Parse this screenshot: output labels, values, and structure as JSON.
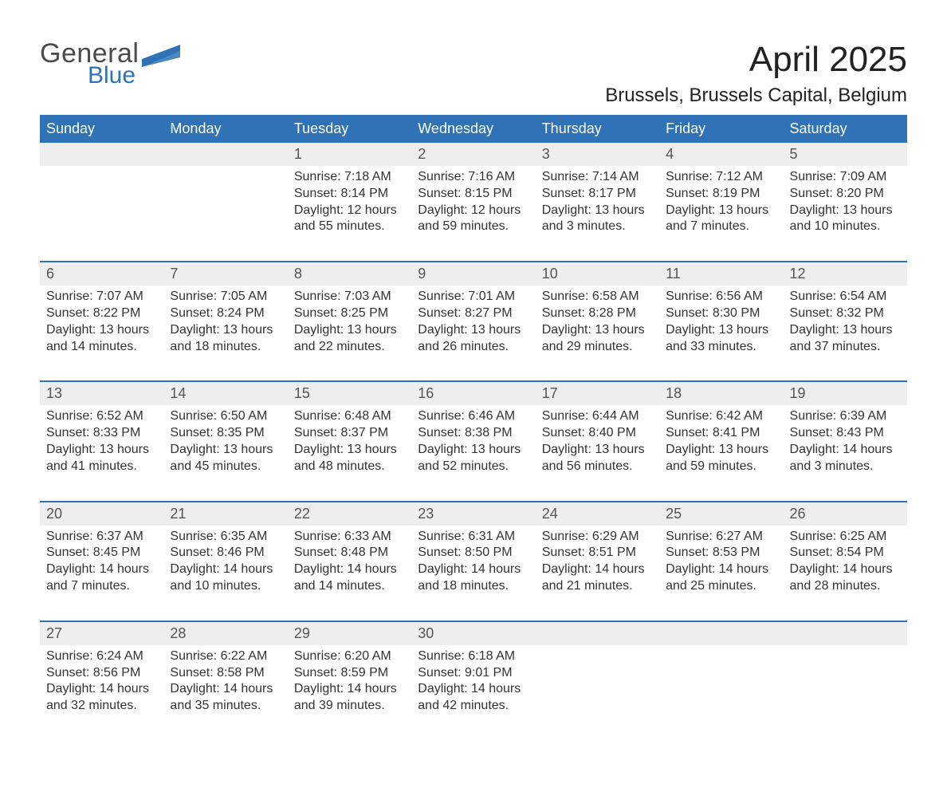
{
  "logo": {
    "word1": "General",
    "word2": "Blue"
  },
  "title": "April 2025",
  "location": "Brussels, Brussels Capital, Belgium",
  "colors": {
    "header_bg": "#2f73b6",
    "header_text": "#ffffff",
    "daynum_bg": "#eeeeee",
    "daynum_text": "#555555",
    "week_border": "#2f73b6",
    "body_text": "#333333",
    "page_bg": "#ffffff",
    "logo_gray": "#4a4a4a",
    "logo_blue": "#2f73b6"
  },
  "typography": {
    "title_fontsize": 44,
    "location_fontsize": 24,
    "header_fontsize": 18,
    "daynum_fontsize": 18,
    "cell_fontsize": 16
  },
  "calendar": {
    "type": "table",
    "columns": [
      "Sunday",
      "Monday",
      "Tuesday",
      "Wednesday",
      "Thursday",
      "Friday",
      "Saturday"
    ],
    "weeks": [
      [
        null,
        null,
        {
          "day": "1",
          "sunrise": "Sunrise: 7:18 AM",
          "sunset": "Sunset: 8:14 PM",
          "dl1": "Daylight: 12 hours",
          "dl2": "and 55 minutes."
        },
        {
          "day": "2",
          "sunrise": "Sunrise: 7:16 AM",
          "sunset": "Sunset: 8:15 PM",
          "dl1": "Daylight: 12 hours",
          "dl2": "and 59 minutes."
        },
        {
          "day": "3",
          "sunrise": "Sunrise: 7:14 AM",
          "sunset": "Sunset: 8:17 PM",
          "dl1": "Daylight: 13 hours",
          "dl2": "and 3 minutes."
        },
        {
          "day": "4",
          "sunrise": "Sunrise: 7:12 AM",
          "sunset": "Sunset: 8:19 PM",
          "dl1": "Daylight: 13 hours",
          "dl2": "and 7 minutes."
        },
        {
          "day": "5",
          "sunrise": "Sunrise: 7:09 AM",
          "sunset": "Sunset: 8:20 PM",
          "dl1": "Daylight: 13 hours",
          "dl2": "and 10 minutes."
        }
      ],
      [
        {
          "day": "6",
          "sunrise": "Sunrise: 7:07 AM",
          "sunset": "Sunset: 8:22 PM",
          "dl1": "Daylight: 13 hours",
          "dl2": "and 14 minutes."
        },
        {
          "day": "7",
          "sunrise": "Sunrise: 7:05 AM",
          "sunset": "Sunset: 8:24 PM",
          "dl1": "Daylight: 13 hours",
          "dl2": "and 18 minutes."
        },
        {
          "day": "8",
          "sunrise": "Sunrise: 7:03 AM",
          "sunset": "Sunset: 8:25 PM",
          "dl1": "Daylight: 13 hours",
          "dl2": "and 22 minutes."
        },
        {
          "day": "9",
          "sunrise": "Sunrise: 7:01 AM",
          "sunset": "Sunset: 8:27 PM",
          "dl1": "Daylight: 13 hours",
          "dl2": "and 26 minutes."
        },
        {
          "day": "10",
          "sunrise": "Sunrise: 6:58 AM",
          "sunset": "Sunset: 8:28 PM",
          "dl1": "Daylight: 13 hours",
          "dl2": "and 29 minutes."
        },
        {
          "day": "11",
          "sunrise": "Sunrise: 6:56 AM",
          "sunset": "Sunset: 8:30 PM",
          "dl1": "Daylight: 13 hours",
          "dl2": "and 33 minutes."
        },
        {
          "day": "12",
          "sunrise": "Sunrise: 6:54 AM",
          "sunset": "Sunset: 8:32 PM",
          "dl1": "Daylight: 13 hours",
          "dl2": "and 37 minutes."
        }
      ],
      [
        {
          "day": "13",
          "sunrise": "Sunrise: 6:52 AM",
          "sunset": "Sunset: 8:33 PM",
          "dl1": "Daylight: 13 hours",
          "dl2": "and 41 minutes."
        },
        {
          "day": "14",
          "sunrise": "Sunrise: 6:50 AM",
          "sunset": "Sunset: 8:35 PM",
          "dl1": "Daylight: 13 hours",
          "dl2": "and 45 minutes."
        },
        {
          "day": "15",
          "sunrise": "Sunrise: 6:48 AM",
          "sunset": "Sunset: 8:37 PM",
          "dl1": "Daylight: 13 hours",
          "dl2": "and 48 minutes."
        },
        {
          "day": "16",
          "sunrise": "Sunrise: 6:46 AM",
          "sunset": "Sunset: 8:38 PM",
          "dl1": "Daylight: 13 hours",
          "dl2": "and 52 minutes."
        },
        {
          "day": "17",
          "sunrise": "Sunrise: 6:44 AM",
          "sunset": "Sunset: 8:40 PM",
          "dl1": "Daylight: 13 hours",
          "dl2": "and 56 minutes."
        },
        {
          "day": "18",
          "sunrise": "Sunrise: 6:42 AM",
          "sunset": "Sunset: 8:41 PM",
          "dl1": "Daylight: 13 hours",
          "dl2": "and 59 minutes."
        },
        {
          "day": "19",
          "sunrise": "Sunrise: 6:39 AM",
          "sunset": "Sunset: 8:43 PM",
          "dl1": "Daylight: 14 hours",
          "dl2": "and 3 minutes."
        }
      ],
      [
        {
          "day": "20",
          "sunrise": "Sunrise: 6:37 AM",
          "sunset": "Sunset: 8:45 PM",
          "dl1": "Daylight: 14 hours",
          "dl2": "and 7 minutes."
        },
        {
          "day": "21",
          "sunrise": "Sunrise: 6:35 AM",
          "sunset": "Sunset: 8:46 PM",
          "dl1": "Daylight: 14 hours",
          "dl2": "and 10 minutes."
        },
        {
          "day": "22",
          "sunrise": "Sunrise: 6:33 AM",
          "sunset": "Sunset: 8:48 PM",
          "dl1": "Daylight: 14 hours",
          "dl2": "and 14 minutes."
        },
        {
          "day": "23",
          "sunrise": "Sunrise: 6:31 AM",
          "sunset": "Sunset: 8:50 PM",
          "dl1": "Daylight: 14 hours",
          "dl2": "and 18 minutes."
        },
        {
          "day": "24",
          "sunrise": "Sunrise: 6:29 AM",
          "sunset": "Sunset: 8:51 PM",
          "dl1": "Daylight: 14 hours",
          "dl2": "and 21 minutes."
        },
        {
          "day": "25",
          "sunrise": "Sunrise: 6:27 AM",
          "sunset": "Sunset: 8:53 PM",
          "dl1": "Daylight: 14 hours",
          "dl2": "and 25 minutes."
        },
        {
          "day": "26",
          "sunrise": "Sunrise: 6:25 AM",
          "sunset": "Sunset: 8:54 PM",
          "dl1": "Daylight: 14 hours",
          "dl2": "and 28 minutes."
        }
      ],
      [
        {
          "day": "27",
          "sunrise": "Sunrise: 6:24 AM",
          "sunset": "Sunset: 8:56 PM",
          "dl1": "Daylight: 14 hours",
          "dl2": "and 32 minutes."
        },
        {
          "day": "28",
          "sunrise": "Sunrise: 6:22 AM",
          "sunset": "Sunset: 8:58 PM",
          "dl1": "Daylight: 14 hours",
          "dl2": "and 35 minutes."
        },
        {
          "day": "29",
          "sunrise": "Sunrise: 6:20 AM",
          "sunset": "Sunset: 8:59 PM",
          "dl1": "Daylight: 14 hours",
          "dl2": "and 39 minutes."
        },
        {
          "day": "30",
          "sunrise": "Sunrise: 6:18 AM",
          "sunset": "Sunset: 9:01 PM",
          "dl1": "Daylight: 14 hours",
          "dl2": "and 42 minutes."
        },
        null,
        null,
        null
      ]
    ]
  }
}
